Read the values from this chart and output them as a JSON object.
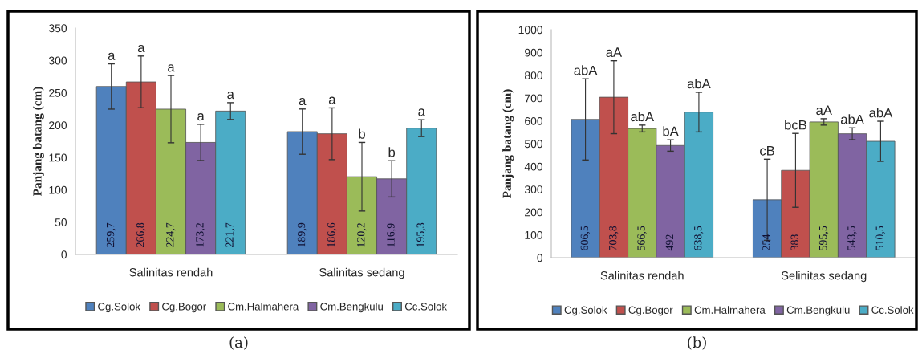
{
  "chart_data": [
    {
      "type": "bar",
      "ylabel": "Panjang batang (cm)",
      "categories": [
        "Salinitas rendah",
        "Salinitas sedang"
      ],
      "ylim": [
        0,
        350
      ],
      "yticks": [
        0,
        50,
        100,
        150,
        200,
        250,
        300,
        350
      ],
      "grid": false,
      "legend": "bottom",
      "data_labels": true,
      "series": [
        {
          "name": "Cg.Solok",
          "color": "#4f81bd",
          "values": [
            259.7,
            189.9
          ],
          "errors": [
            35,
            35
          ],
          "value_labels": [
            "259,7",
            "189,9"
          ]
        },
        {
          "name": "Cg.Bogor",
          "color": "#c0504d",
          "values": [
            266.8,
            186.6
          ],
          "errors": [
            40,
            40
          ],
          "value_labels": [
            "266,8",
            "186,6"
          ]
        },
        {
          "name": "Cm.Halmahera",
          "color": "#9bbb59",
          "values": [
            224.7,
            120.2
          ],
          "errors": [
            52,
            53
          ],
          "value_labels": [
            "224,7",
            "120,2"
          ]
        },
        {
          "name": "Cm.Bengkulu",
          "color": "#8064a2",
          "values": [
            173.2,
            116.9
          ],
          "errors": [
            28,
            28
          ],
          "value_labels": [
            "173,2",
            "116,9"
          ]
        },
        {
          "name": "Cc.Solok",
          "color": "#4bacc6",
          "values": [
            221.7,
            195.3
          ],
          "errors": [
            13,
            13
          ],
          "value_labels": [
            "221,7",
            "195,3"
          ]
        }
      ],
      "annotations": [
        "a",
        "a",
        "a",
        "a",
        "a",
        "a",
        "a",
        "b",
        "b",
        "a",
        "(a)"
      ]
    },
    {
      "type": "bar",
      "ylabel": "Panjang batang (cm)",
      "categories": [
        "Salinitas rendah",
        "Selinitas sedang"
      ],
      "ylim": [
        0,
        1000
      ],
      "yticks": [
        0,
        100,
        200,
        300,
        400,
        500,
        600,
        700,
        800,
        900,
        1000
      ],
      "grid": false,
      "legend": "bottom",
      "data_labels": true,
      "series": [
        {
          "name": "Cg.Solok",
          "color": "#4f81bd",
          "values": [
            606.5,
            254
          ],
          "errors": [
            178,
            178
          ],
          "value_labels": [
            "606,5",
            "254"
          ]
        },
        {
          "name": "Cg.Bogor",
          "color": "#c0504d",
          "values": [
            703.8,
            383
          ],
          "errors": [
            160,
            162
          ],
          "value_labels": [
            "703,8",
            "383"
          ]
        },
        {
          "name": "Cm.Halmahera",
          "color": "#9bbb59",
          "values": [
            566.5,
            595.5
          ],
          "errors": [
            15,
            14
          ],
          "value_labels": [
            "566,5",
            "595,5"
          ]
        },
        {
          "name": "Cm.Bengkulu",
          "color": "#8064a2",
          "values": [
            492,
            543.5
          ],
          "errors": [
            25,
            26
          ],
          "value_labels": [
            "492",
            "543,5"
          ]
        },
        {
          "name": "Cc.Solok",
          "color": "#4bacc6",
          "values": [
            638.5,
            510.5
          ],
          "errors": [
            87,
            88
          ],
          "value_labels": [
            "638,5",
            "510,5"
          ]
        }
      ],
      "annotations": [
        "abA",
        "aA",
        "abA",
        "bA",
        "abA",
        "cB",
        "bcB",
        "aA",
        "abA",
        "abA",
        "(b)"
      ]
    }
  ]
}
